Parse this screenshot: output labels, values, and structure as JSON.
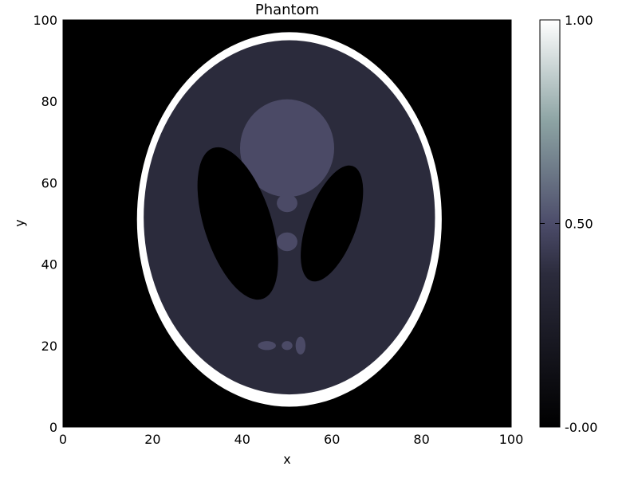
{
  "chart_data": {
    "type": "heatmap",
    "title": "Phantom",
    "xlabel": "x",
    "ylabel": "y",
    "xlim": [
      0,
      100
    ],
    "ylim": [
      0,
      100
    ],
    "x_ticks": [
      0,
      20,
      40,
      60,
      80,
      100
    ],
    "y_ticks": [
      0,
      20,
      40,
      60,
      80,
      100
    ],
    "x_tick_labels": [
      "0",
      "20",
      "40",
      "60",
      "80",
      "100"
    ],
    "y_tick_labels": [
      "0",
      "20",
      "40",
      "60",
      "80",
      "100"
    ],
    "colormap": "bone",
    "colorbar": {
      "range": [
        0,
        1
      ],
      "ticks": [
        1.0,
        0.5,
        0.0
      ],
      "tick_labels": [
        "1.00",
        "0.50",
        "-0.00"
      ]
    },
    "background_value": 0.0,
    "grid": false,
    "colors": {
      "background": "#000000",
      "outer_ring": "#ffffff",
      "tissue": "#2b2b3c",
      "dark_ellipses": "#000000",
      "upper_blob": "#4b4a66",
      "small_features": "#4b4a66"
    }
  }
}
